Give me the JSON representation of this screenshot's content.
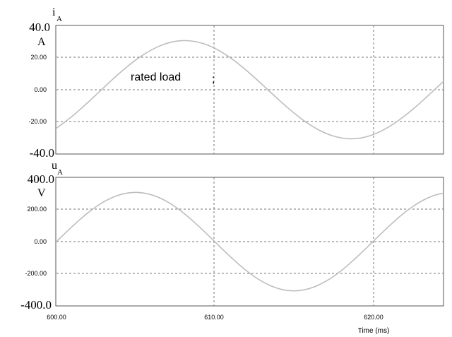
{
  "chart_data": [
    {
      "type": "line",
      "signal_label": "i",
      "signal_subscript": "A",
      "unit": "A",
      "x": [
        600.0,
        601.0,
        602.0,
        603.0,
        604.0,
        605.0,
        606.0,
        607.0,
        608.0,
        609.0,
        610.0,
        611.0,
        612.0,
        613.0,
        614.0,
        615.0,
        616.0,
        617.0,
        618.0,
        619.0,
        620.0,
        621.0,
        622.0,
        623.0,
        624.0,
        625.0,
        626.0
      ],
      "series": [
        {
          "values": [
            -23.9,
            -16.6,
            -7.8,
            1.5,
            10.6,
            18.7,
            25.0,
            29.2,
            30.9,
            29.8,
            26.1,
            20.0,
            12.2,
            3.3,
            -5.9,
            -14.6,
            -21.9,
            -27.3,
            -30.3,
            -30.7,
            -28.3,
            -23.4,
            -16.5,
            -8.2,
            1.0,
            10.0,
            18.0
          ]
        }
      ],
      "ylim": [
        -40.0,
        40.0
      ],
      "xlim": [
        600.0,
        626.0
      ],
      "y_ticks": [
        "-20.00",
        "0.00",
        "20.00"
      ],
      "y_end_labels": {
        "top": "40.0",
        "bottom": "-40.0"
      },
      "annotation": "rated load",
      "annotation_mark": ";",
      "grid": true
    },
    {
      "type": "line",
      "signal_label": "u",
      "signal_subscript": "A",
      "unit": "V",
      "x": [
        600.0,
        601.0,
        602.0,
        603.0,
        604.0,
        605.0,
        606.0,
        607.0,
        608.0,
        609.0,
        610.0,
        611.0,
        612.0,
        613.0,
        614.0,
        615.0,
        616.0,
        617.0,
        618.0,
        619.0,
        620.0,
        621.0,
        622.0,
        623.0,
        624.0,
        625.0,
        626.0
      ],
      "series": [
        {
          "values": [
            0,
            96,
            183,
            251,
            295,
            310,
            295,
            251,
            183,
            96,
            0,
            -96,
            -183,
            -251,
            -295,
            -310,
            -295,
            -251,
            -183,
            -96,
            0,
            96,
            183,
            251,
            295,
            310,
            295
          ]
        }
      ],
      "ylim": [
        -400.0,
        400.0
      ],
      "xlim": [
        600.0,
        626.0
      ],
      "y_ticks": [
        "-200.00",
        "0.00",
        "200.00"
      ],
      "y_end_labels": {
        "top": "400.0",
        "bottom": "-400.0"
      },
      "x_ticks": [
        "600.00",
        "610.00",
        "620.00"
      ],
      "xlabel": "Time  (ms)",
      "grid": true
    }
  ]
}
